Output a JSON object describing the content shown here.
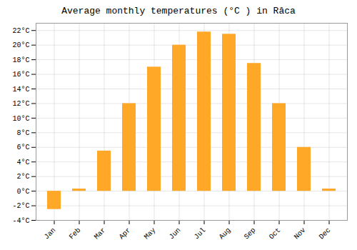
{
  "chart_data": {
    "type": "bar",
    "title": "Average monthly temperatures (°C ) in Râca",
    "categories": [
      "Jan",
      "Feb",
      "Mar",
      "Apr",
      "May",
      "Jun",
      "Jul",
      "Aug",
      "Sep",
      "Oct",
      "Nov",
      "Dec"
    ],
    "values": [
      -2.5,
      0.3,
      5.5,
      12.0,
      17.0,
      20.0,
      21.8,
      21.5,
      17.5,
      12.0,
      6.0,
      0.3
    ],
    "color": "#FFA726",
    "ylim": [
      -4,
      23
    ],
    "yticks": [
      {
        "value": -4,
        "label": "-4°C"
      },
      {
        "value": -2,
        "label": "-2°C"
      },
      {
        "value": 0,
        "label": "0°C"
      },
      {
        "value": 2,
        "label": "2°C"
      },
      {
        "value": 4,
        "label": "4°C"
      },
      {
        "value": 6,
        "label": "6°C"
      },
      {
        "value": 8,
        "label": "8°C"
      },
      {
        "value": 10,
        "label": "10°C"
      },
      {
        "value": 12,
        "label": "12°C"
      },
      {
        "value": 14,
        "label": "14°C"
      },
      {
        "value": 16,
        "label": "16°C"
      },
      {
        "value": 18,
        "label": "18°C"
      },
      {
        "value": 20,
        "label": "20°C"
      },
      {
        "value": 22,
        "label": "22°C"
      }
    ],
    "grid": true
  }
}
